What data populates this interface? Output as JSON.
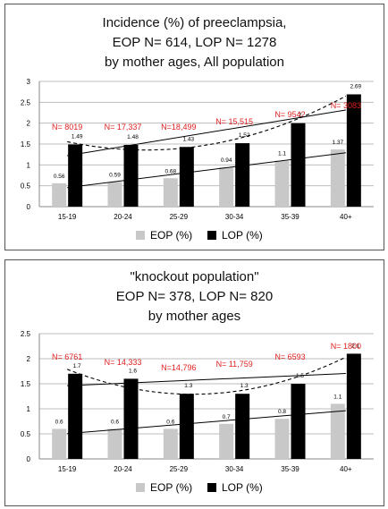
{
  "colors": {
    "eop": "#c8c8c8",
    "lop": "#000000",
    "annotation": "#e02020"
  },
  "chart_data": [
    {
      "type": "bar",
      "title_lines": [
        "Incidence (%) of preeclampsia,",
        "EOP N= 614, LOP N= 1278",
        "by mother ages,  All population"
      ],
      "categories": [
        "15-19",
        "20-24",
        "25-29",
        "30-34",
        "35-39",
        "40+"
      ],
      "y_ticks": [
        "0",
        "0.5",
        "1",
        "1.5",
        "2",
        "2.5",
        "3"
      ],
      "ylim": [
        0,
        3
      ],
      "series": [
        {
          "name": "EOP (%)",
          "values": [
            0.56,
            0.59,
            0.68,
            0.94,
            1.1,
            1.37
          ],
          "labels": [
            "0.56",
            "0.59",
            "0.68",
            "0.94",
            "1.1",
            "1.37"
          ]
        },
        {
          "name": "LOP (%)",
          "values": [
            1.49,
            1.48,
            1.43,
            1.52,
            2.0,
            2.69
          ],
          "labels": [
            "1.49",
            "1.48",
            "1.43",
            "1.52",
            "2",
            "2.69"
          ]
        }
      ],
      "n_labels": [
        "N= 8019",
        "N= 17,337",
        "N=18,499",
        "N= 15,515",
        "N= 9542",
        "N= 3083"
      ],
      "legend": [
        "EOP (%)",
        "LOP (%)"
      ],
      "legend_position": "bottom",
      "trendlines": [
        "linear EOP",
        "linear LOP",
        "polynomial LOP (dashed)"
      ],
      "grid": "horizontal"
    },
    {
      "type": "bar",
      "title_lines": [
        "\"knockout population\"",
        "EOP N= 378, LOP N= 820",
        "by mother ages"
      ],
      "categories": [
        "15-19",
        "20-24",
        "25-29",
        "30-34",
        "35-39",
        "40+"
      ],
      "y_ticks": [
        "0",
        "0.5",
        "1",
        "1.5",
        "2",
        "2.5"
      ],
      "ylim": [
        0,
        2.5
      ],
      "series": [
        {
          "name": "EOP (%)",
          "values": [
            0.6,
            0.6,
            0.6,
            0.7,
            0.8,
            1.1
          ],
          "labels": [
            "0.6",
            "0.6",
            "0.6",
            "0.7",
            "0.8",
            "1.1"
          ]
        },
        {
          "name": "LOP (%)",
          "values": [
            1.7,
            1.6,
            1.3,
            1.3,
            1.5,
            2.1
          ],
          "labels": [
            "1.7",
            "1.6",
            "1.3",
            "1.3",
            "1.5",
            "2.1"
          ]
        }
      ],
      "n_labels": [
        "N= 6761",
        "N= 14,333",
        "N=14,796",
        "N= 11,759",
        "N= 6593",
        "N= 1800"
      ],
      "legend": [
        "EOP (%)",
        "LOP (%)"
      ],
      "legend_position": "bottom",
      "trendlines": [
        "linear EOP",
        "linear LOP",
        "polynomial LOP (dashed)"
      ],
      "grid": "horizontal"
    }
  ]
}
